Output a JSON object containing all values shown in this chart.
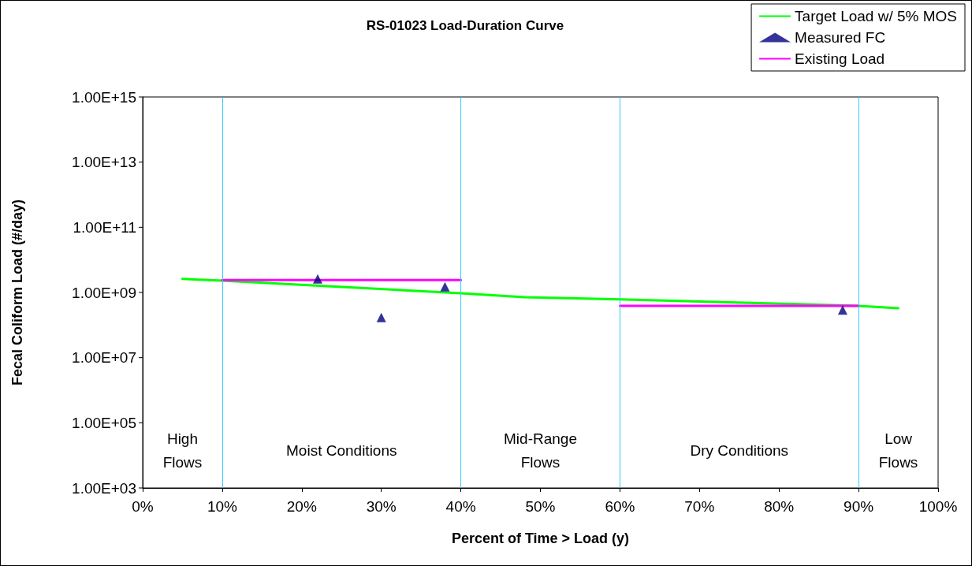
{
  "chart_data": {
    "type": "line",
    "title": "RS-01023 Load-Duration Curve",
    "xlabel": "Percent of Time > Load (y)",
    "ylabel": "Fecal Coliform Load (#/day)",
    "series": [
      {
        "name": "Target Load w/ 5% MOS",
        "color": "#00ff00",
        "x": [
          5,
          10,
          40,
          48,
          60,
          90,
          95
        ],
        "values": [
          2600000000.0,
          2300000000.0,
          950000000.0,
          720000000.0,
          610000000.0,
          390000000.0,
          330000000.0
        ]
      },
      {
        "name": "Measured FC",
        "type": "scatter",
        "marker": "triangle",
        "color": "#000080",
        "x": [
          22,
          30,
          38,
          88
        ],
        "values": [
          2600000000.0,
          170000000.0,
          1500000000.0,
          290000000.0
        ]
      },
      {
        "name": "Existing Load",
        "color": "#ff00ff",
        "x": [
          10,
          40,
          50,
          60,
          90
        ],
        "values": [
          2400000000.0,
          2400000000.0,
          null,
          390000000.0,
          390000000.0
        ]
      }
    ],
    "log": "y",
    "marker": "none",
    "line_style": "solid",
    "grid": false,
    "legend": "top right",
    "xlim": [
      0,
      100
    ],
    "xticks": [
      {
        "value": 0,
        "label": "0%"
      },
      {
        "value": 10,
        "label": "10%"
      },
      {
        "value": 20,
        "label": "20%"
      },
      {
        "value": 30,
        "label": "30%"
      },
      {
        "value": 40,
        "label": "40%"
      },
      {
        "value": 50,
        "label": "50%"
      },
      {
        "value": 60,
        "label": "60%"
      },
      {
        "value": 70,
        "label": "70%"
      },
      {
        "value": 80,
        "label": "80%"
      },
      {
        "value": 90,
        "label": "90%"
      },
      {
        "value": 100,
        "label": "100%"
      }
    ],
    "ylim": [
      1000.0,
      1000000000000000.0
    ],
    "yticks": [
      {
        "value": 1000.0,
        "label": "1.00E+03"
      },
      {
        "value": 100000.0,
        "label": "1.00E+05"
      },
      {
        "value": 10000000.0,
        "label": "1.00E+07"
      },
      {
        "value": 1000000000.0,
        "label": "1.00E+09"
      },
      {
        "value": 100000000000.0,
        "label": "1.00E+11"
      },
      {
        "value": 10000000000000.0,
        "label": "1.00E+13"
      },
      {
        "value": 1000000000000000.0,
        "label": "1.00E+15"
      }
    ],
    "ref_lines": [
      {
        "axis": "x",
        "value": 10,
        "color": "#33ccff"
      },
      {
        "axis": "x",
        "value": 40,
        "color": "#33ccff"
      },
      {
        "axis": "x",
        "value": 60,
        "color": "#33ccff"
      },
      {
        "axis": "x",
        "value": 90,
        "color": "#33ccff"
      }
    ],
    "annotations": [
      "High\nFlows",
      "Moist Conditions",
      "Mid-Range\nFlows",
      "Dry Conditions",
      "Low\nFlows"
    ]
  }
}
